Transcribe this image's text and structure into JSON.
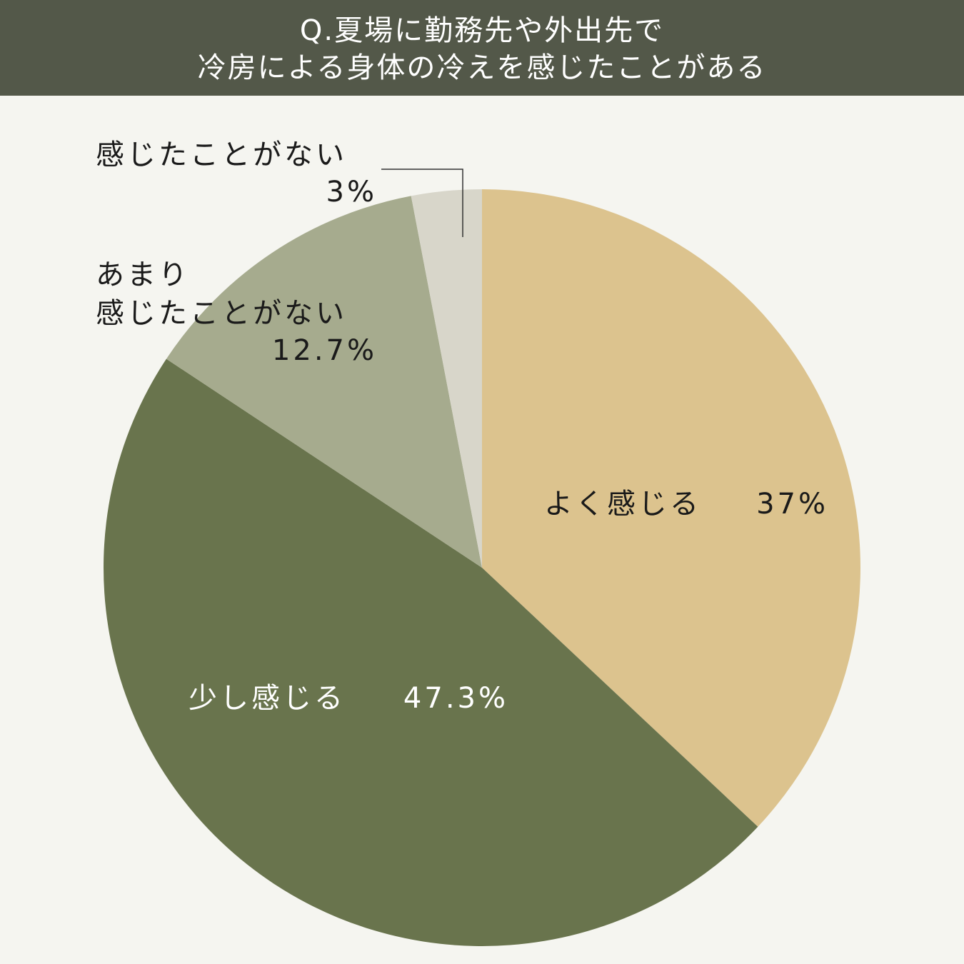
{
  "title": {
    "line1": "Q.夏場に勤務先や外出先で",
    "line2": "冷房による身体の冷えを感じたことがある"
  },
  "chart_data": {
    "type": "pie",
    "title": "Q.夏場に勤務先や外出先で冷房による身体の冷えを感じたことがある",
    "start": "12 o'clock, clockwise",
    "slices": [
      {
        "label": "よく感じる",
        "value": 37,
        "value_label": "37%",
        "color": "#dcc38e"
      },
      {
        "label": "少し感じる",
        "value": 47.3,
        "value_label": "47.3%",
        "color": "#69744d"
      },
      {
        "label_lines": [
          "あまり",
          "感じたことがない"
        ],
        "value": 12.7,
        "value_label": "12.7%",
        "color": "#a6ab8e"
      },
      {
        "label": "感じたことがない",
        "value": 3,
        "value_label": "3%",
        "color": "#d8d6ca"
      }
    ]
  }
}
